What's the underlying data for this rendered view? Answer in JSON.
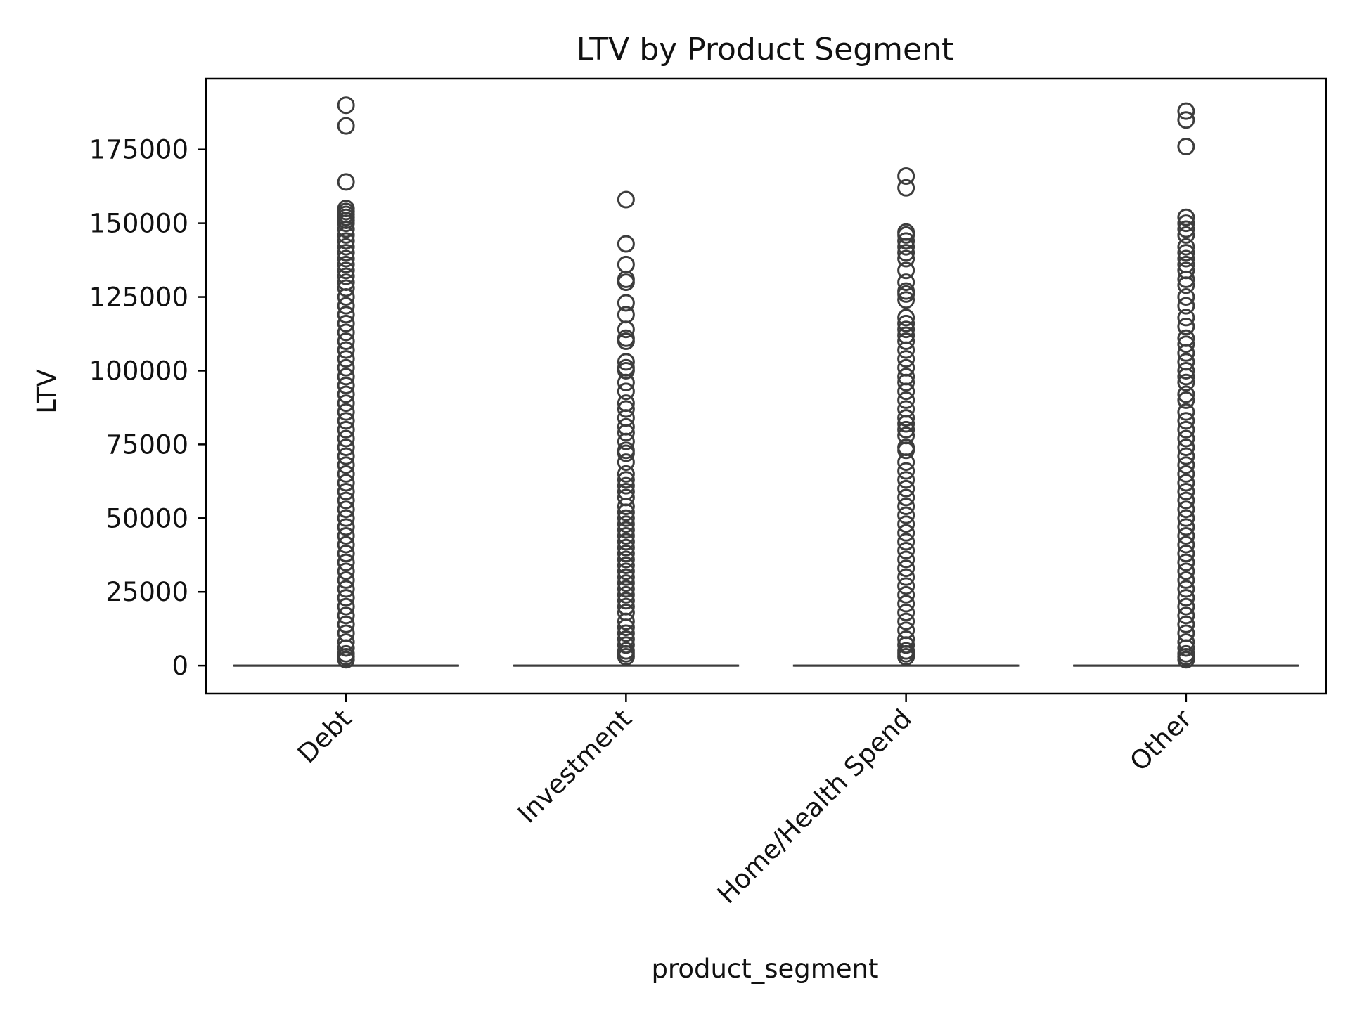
{
  "chart_data": {
    "type": "box",
    "title": "LTV by Product Segment",
    "xlabel": "product_segment",
    "ylabel": "LTV",
    "ylim": [
      -9500,
      199000
    ],
    "yticks": [
      0,
      25000,
      50000,
      75000,
      100000,
      125000,
      150000,
      175000
    ],
    "categories": [
      "Debt",
      "Investment",
      "Home/Health Spend",
      "Other"
    ],
    "box_stats": [
      {
        "category": "Debt",
        "q1": 0,
        "median": 0,
        "q3": 0,
        "whisker_low": 0,
        "whisker_high": 0
      },
      {
        "category": "Investment",
        "q1": 0,
        "median": 0,
        "q3": 0,
        "whisker_low": 0,
        "whisker_high": 0
      },
      {
        "category": "Home/Health Spend",
        "q1": 0,
        "median": 0,
        "q3": 0,
        "whisker_low": 0,
        "whisker_high": 0
      },
      {
        "category": "Other",
        "q1": 0,
        "median": 0,
        "q3": 0,
        "whisker_low": 0,
        "whisker_high": 0
      }
    ],
    "outliers": [
      {
        "category": "Debt",
        "values": [
          190000,
          183000,
          164000,
          155000,
          154000,
          153000,
          152000,
          151000,
          150000,
          148000,
          146000,
          144000,
          142000,
          140000,
          138000,
          136000,
          134000,
          132000,
          130000,
          128000,
          125000,
          122000,
          119000,
          116000,
          113000,
          110000,
          107000,
          104000,
          101000,
          98000,
          95000,
          92000,
          89000,
          86000,
          83000,
          80000,
          77000,
          74000,
          71000,
          68000,
          65000,
          62000,
          59000,
          56000,
          53000,
          50000,
          47000,
          44000,
          41000,
          38000,
          35000,
          32000,
          29000,
          26000,
          23000,
          20000,
          17000,
          14000,
          11000,
          8000,
          6000,
          4000,
          3000,
          2000
        ]
      },
      {
        "category": "Investment",
        "values": [
          158000,
          143000,
          136000,
          131000,
          130000,
          123000,
          119000,
          114000,
          111000,
          110000,
          103000,
          101000,
          100000,
          96000,
          93000,
          89000,
          87000,
          84000,
          81000,
          79000,
          76000,
          73000,
          72000,
          69000,
          65000,
          63000,
          61000,
          59000,
          57000,
          54000,
          52000,
          50000,
          48000,
          46000,
          44000,
          42000,
          40000,
          38000,
          36000,
          34000,
          32000,
          30000,
          28000,
          26000,
          24000,
          22000,
          20000,
          18000,
          15000,
          13000,
          11000,
          9000,
          7000,
          5000,
          4000,
          3000
        ]
      },
      {
        "category": "Home/Health Spend",
        "values": [
          166000,
          162000,
          147000,
          146000,
          144000,
          142000,
          140000,
          138000,
          134000,
          130000,
          127000,
          126000,
          124000,
          118000,
          116000,
          114000,
          112000,
          110000,
          107000,
          104000,
          101000,
          98000,
          96000,
          93000,
          90000,
          87000,
          84000,
          82000,
          80000,
          78000,
          74000,
          73000,
          69000,
          66000,
          63000,
          60000,
          57000,
          54000,
          51000,
          48000,
          45000,
          42000,
          39000,
          36000,
          33000,
          30000,
          27000,
          24000,
          21000,
          18000,
          15000,
          12000,
          9000,
          7000,
          5000,
          4000,
          3000
        ]
      },
      {
        "category": "Other",
        "values": [
          188000,
          185000,
          176000,
          152000,
          150000,
          148000,
          146000,
          142000,
          140000,
          138000,
          136000,
          134000,
          131000,
          129000,
          125000,
          122000,
          118000,
          115000,
          111000,
          109000,
          106000,
          103000,
          100000,
          98000,
          96000,
          92000,
          90000,
          86000,
          83000,
          80000,
          77000,
          74000,
          71000,
          68000,
          65000,
          62000,
          59000,
          56000,
          53000,
          50000,
          47000,
          44000,
          41000,
          38000,
          35000,
          32000,
          29000,
          26000,
          23000,
          20000,
          17000,
          14000,
          11000,
          8000,
          6000,
          4000,
          3000,
          2000
        ]
      }
    ],
    "grid": false,
    "colors": {
      "mark": "#3d3d3d",
      "axis": "#000000",
      "text": "#111111",
      "background": "#ffffff"
    }
  }
}
